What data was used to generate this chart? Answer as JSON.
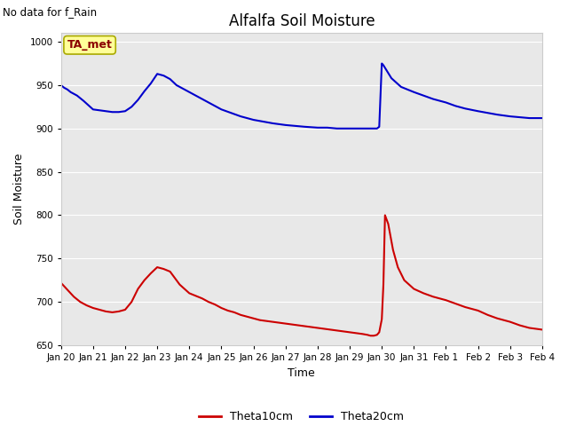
{
  "title": "Alfalfa Soil Moisture",
  "xlabel": "Time",
  "ylabel": "Soil Moisture",
  "top_label": "No data for f_Rain",
  "legend_box_label": "TA_met",
  "ylim": [
    650,
    1010
  ],
  "yticks": [
    650,
    700,
    750,
    800,
    850,
    900,
    950,
    1000
  ],
  "background_color": "#ffffff",
  "plot_bg_color": "#e8e8e8",
  "theta10_color": "#cc0000",
  "theta20_color": "#0000cc",
  "legend_labels": [
    "Theta10cm",
    "Theta20cm"
  ],
  "x_days": [
    20,
    21,
    22,
    23,
    24,
    25,
    26,
    27,
    28,
    29,
    30,
    31,
    32,
    33,
    34,
    35
  ],
  "x_tick_labels": [
    "Jan 20",
    "Jan 21",
    "Jan 22",
    "Jan 23",
    "Jan 24",
    "Jan 25",
    "Jan 26",
    "Jan 27",
    "Jan 28",
    "Jan 29",
    "Jan 30",
    "Jan 31",
    "Feb 1",
    "Feb 2",
    "Feb 3",
    "Feb 4"
  ],
  "theta10_x": [
    20.0,
    20.1,
    20.2,
    20.3,
    20.4,
    20.5,
    20.6,
    20.7,
    20.8,
    21.0,
    21.2,
    21.4,
    21.6,
    21.8,
    22.0,
    22.2,
    22.4,
    22.6,
    22.8,
    23.0,
    23.2,
    23.4,
    23.5,
    23.7,
    24.0,
    24.2,
    24.4,
    24.6,
    24.8,
    25.0,
    25.2,
    25.4,
    25.6,
    25.8,
    26.0,
    26.2,
    26.4,
    26.6,
    26.8,
    27.0,
    27.2,
    27.4,
    27.6,
    27.8,
    28.0,
    28.2,
    28.4,
    28.6,
    28.8,
    29.0,
    29.2,
    29.4,
    29.55,
    29.65,
    29.75,
    29.85,
    29.92,
    30.0,
    30.05,
    30.1,
    30.2,
    30.35,
    30.5,
    30.7,
    31.0,
    31.3,
    31.6,
    32.0,
    32.3,
    32.6,
    33.0,
    33.3,
    33.6,
    34.0,
    34.3,
    34.6,
    35.0
  ],
  "theta10_y": [
    722,
    718,
    714,
    710,
    706,
    703,
    700,
    698,
    696,
    693,
    691,
    689,
    688,
    689,
    691,
    700,
    715,
    725,
    733,
    740,
    738,
    735,
    730,
    720,
    710,
    707,
    704,
    700,
    697,
    693,
    690,
    688,
    685,
    683,
    681,
    679,
    678,
    677,
    676,
    675,
    674,
    673,
    672,
    671,
    670,
    669,
    668,
    667,
    666,
    665,
    664,
    663,
    662,
    661,
    661,
    662,
    665,
    680,
    720,
    800,
    790,
    760,
    740,
    725,
    715,
    710,
    706,
    702,
    698,
    694,
    690,
    685,
    681,
    677,
    673,
    670,
    668
  ],
  "theta20_x": [
    20.0,
    20.1,
    20.2,
    20.3,
    20.5,
    20.7,
    21.0,
    21.2,
    21.4,
    21.6,
    21.8,
    22.0,
    22.2,
    22.4,
    22.6,
    22.8,
    23.0,
    23.2,
    23.4,
    23.6,
    24.0,
    24.2,
    24.4,
    24.6,
    24.8,
    25.0,
    25.3,
    25.6,
    26.0,
    26.3,
    26.6,
    27.0,
    27.3,
    27.6,
    28.0,
    28.3,
    28.6,
    29.0,
    29.3,
    29.6,
    29.75,
    29.85,
    29.92,
    30.0,
    30.05,
    30.15,
    30.3,
    30.6,
    31.0,
    31.3,
    31.6,
    32.0,
    32.3,
    32.6,
    33.0,
    33.3,
    33.6,
    34.0,
    34.3,
    34.6,
    35.0
  ],
  "theta20_y": [
    950,
    947,
    945,
    942,
    938,
    932,
    922,
    921,
    920,
    919,
    919,
    920,
    925,
    933,
    943,
    952,
    963,
    961,
    957,
    950,
    942,
    938,
    934,
    930,
    926,
    922,
    918,
    914,
    910,
    908,
    906,
    904,
    903,
    902,
    901,
    901,
    900,
    900,
    900,
    900,
    900,
    900,
    902,
    975,
    973,
    967,
    958,
    948,
    942,
    938,
    934,
    930,
    926,
    923,
    920,
    918,
    916,
    914,
    913,
    912,
    912
  ]
}
